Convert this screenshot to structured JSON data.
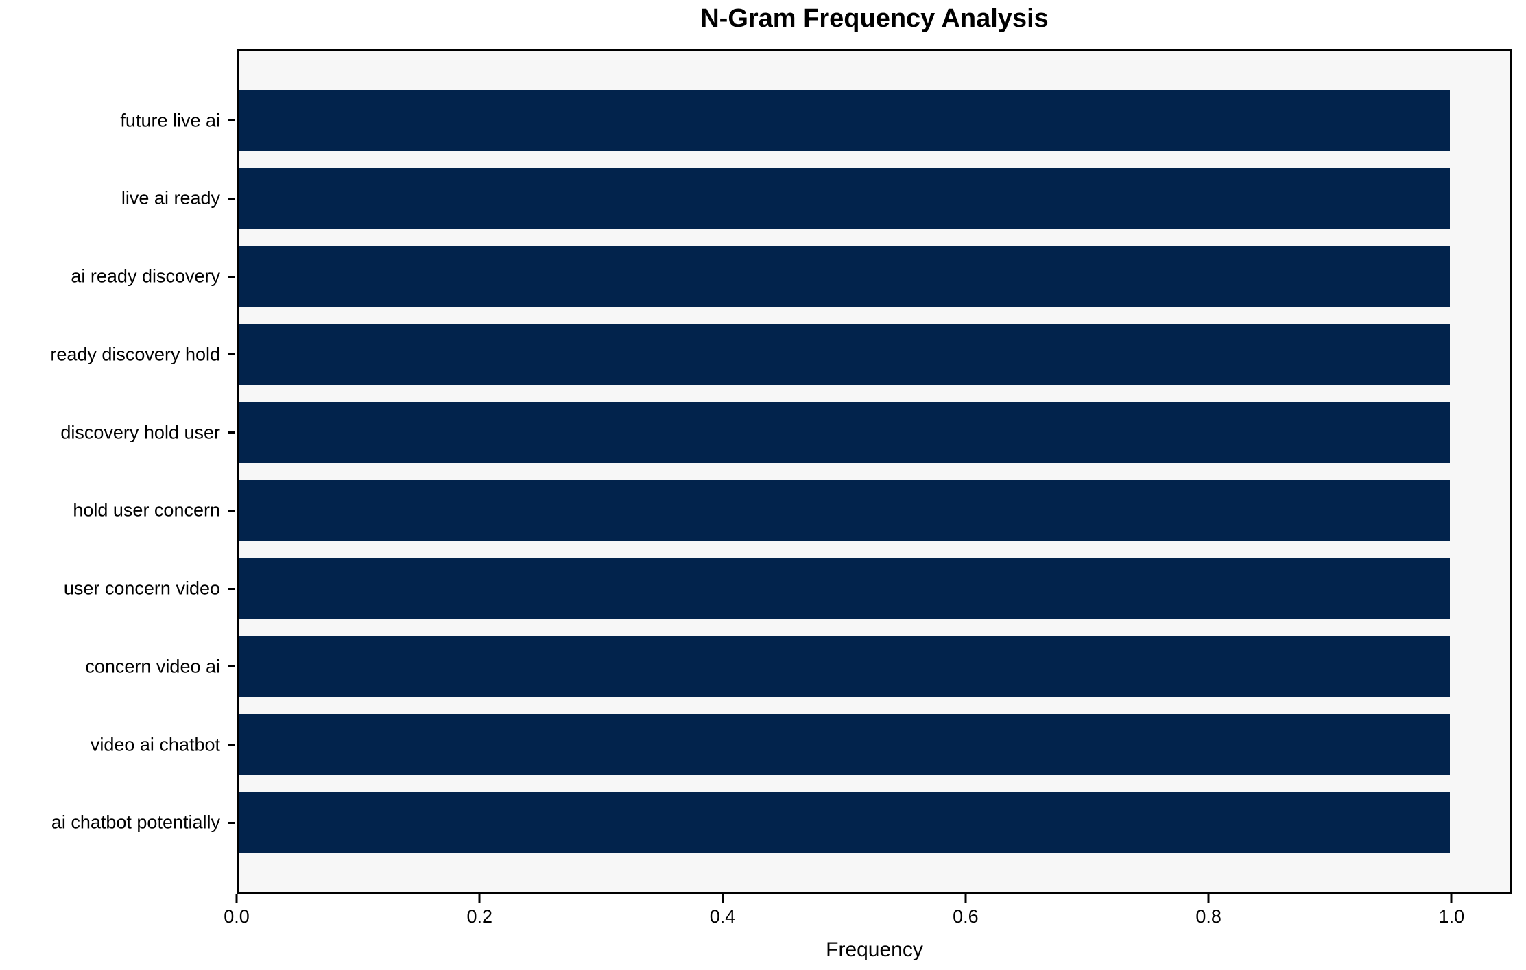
{
  "chart_data": {
    "type": "bar",
    "orientation": "horizontal",
    "title": "N-Gram Frequency Analysis",
    "xlabel": "Frequency",
    "ylabel": "",
    "categories": [
      "future live ai",
      "live ai ready",
      "ai ready discovery",
      "ready discovery hold",
      "discovery hold user",
      "hold user concern",
      "user concern video",
      "concern video ai",
      "video ai chatbot",
      "ai chatbot potentially"
    ],
    "values": [
      1.0,
      1.0,
      1.0,
      1.0,
      1.0,
      1.0,
      1.0,
      1.0,
      1.0,
      1.0
    ],
    "x_ticks": [
      0.0,
      0.2,
      0.4,
      0.6,
      0.8,
      1.0
    ],
    "x_tick_labels": [
      "0.0",
      "0.2",
      "0.4",
      "0.6",
      "0.8",
      "1.0"
    ],
    "xlim": [
      0,
      1.05
    ],
    "grid": false,
    "legend": null,
    "colors": {
      "bar": "#02234c",
      "plot_background": "#f7f7f7",
      "figure_background": "#ffffff",
      "spine": "#000000",
      "text": "#000000"
    }
  }
}
